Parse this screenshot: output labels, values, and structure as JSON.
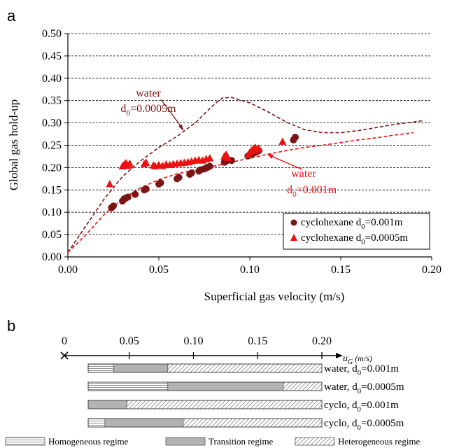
{
  "panel_labels": {
    "a": "a",
    "b": "b"
  },
  "chart_data": [
    {
      "type": "scatter",
      "xlabel": "Superficial gas velocity (m/s)",
      "ylabel": "Global gas hold-up",
      "xlim": [
        0,
        0.2
      ],
      "ylim": [
        0,
        0.5
      ],
      "xticks": [
        0,
        0.05,
        0.1,
        0.15,
        0.2
      ],
      "xtick_labels": [
        "0.00",
        "0.05",
        "0.10",
        "0.15",
        "0.20"
      ],
      "yticks": [
        0,
        0.05,
        0.1,
        0.15,
        0.2,
        0.25,
        0.3,
        0.35,
        0.4,
        0.45,
        0.5
      ],
      "ytick_labels": [
        "0.00",
        "0.05",
        "0.10",
        "0.15",
        "0.20",
        "0.25",
        "0.30",
        "0.35",
        "0.40",
        "0.45",
        "0.50"
      ],
      "grid": "horizontal-dashed",
      "legend_position": "bottom-right",
      "series": [
        {
          "name_prefix": "cyclohexane d",
          "name_sub": "0",
          "name_suffix": "=0.001m",
          "marker": "circle",
          "color": "#7a1515",
          "points": [
            [
              0.024,
              0.11
            ],
            [
              0.025,
              0.114
            ],
            [
              0.03,
              0.125
            ],
            [
              0.031,
              0.13
            ],
            [
              0.032,
              0.132
            ],
            [
              0.033,
              0.134
            ],
            [
              0.037,
              0.14
            ],
            [
              0.042,
              0.15
            ],
            [
              0.043,
              0.152
            ],
            [
              0.05,
              0.163
            ],
            [
              0.051,
              0.166
            ],
            [
              0.06,
              0.175
            ],
            [
              0.061,
              0.178
            ],
            [
              0.067,
              0.185
            ],
            [
              0.068,
              0.188
            ],
            [
              0.072,
              0.192
            ],
            [
              0.073,
              0.195
            ],
            [
              0.075,
              0.197
            ],
            [
              0.076,
              0.199
            ],
            [
              0.077,
              0.201
            ],
            [
              0.078,
              0.203
            ],
            [
              0.086,
              0.212
            ],
            [
              0.087,
              0.214
            ],
            [
              0.09,
              0.216
            ],
            [
              0.099,
              0.226
            ],
            [
              0.1,
              0.228
            ],
            [
              0.101,
              0.23
            ],
            [
              0.102,
              0.232
            ],
            [
              0.103,
              0.234
            ],
            [
              0.104,
              0.236
            ],
            [
              0.105,
              0.238
            ],
            [
              0.124,
              0.262
            ],
            [
              0.125,
              0.268
            ]
          ]
        },
        {
          "name_prefix": "cyclohexane d",
          "name_sub": "0",
          "name_suffix": "=0.0005m",
          "marker": "triangle",
          "color": "#ee1111",
          "points": [
            [
              0.023,
              0.163
            ],
            [
              0.03,
              0.203
            ],
            [
              0.031,
              0.207
            ],
            [
              0.032,
              0.21
            ],
            [
              0.033,
              0.204
            ],
            [
              0.034,
              0.209
            ],
            [
              0.042,
              0.208
            ],
            [
              0.043,
              0.211
            ],
            [
              0.047,
              0.205
            ],
            [
              0.048,
              0.203
            ],
            [
              0.05,
              0.206
            ],
            [
              0.052,
              0.204
            ],
            [
              0.054,
              0.207
            ],
            [
              0.056,
              0.206
            ],
            [
              0.058,
              0.208
            ],
            [
              0.06,
              0.209
            ],
            [
              0.062,
              0.21
            ],
            [
              0.064,
              0.211
            ],
            [
              0.066,
              0.212
            ],
            [
              0.068,
              0.214
            ],
            [
              0.07,
              0.216
            ],
            [
              0.072,
              0.217
            ],
            [
              0.074,
              0.216
            ],
            [
              0.076,
              0.219
            ],
            [
              0.078,
              0.221
            ],
            [
              0.086,
              0.225
            ],
            [
              0.087,
              0.229
            ],
            [
              0.088,
              0.222
            ],
            [
              0.099,
              0.228
            ],
            [
              0.1,
              0.234
            ],
            [
              0.101,
              0.238
            ],
            [
              0.102,
              0.242
            ],
            [
              0.103,
              0.245
            ],
            [
              0.104,
              0.24
            ],
            [
              0.105,
              0.243
            ],
            [
              0.118,
              0.258
            ]
          ]
        }
      ],
      "curves": [
        {
          "color": "#7a1515",
          "points": [
            [
              0,
              0.01
            ],
            [
              0.01,
              0.07
            ],
            [
              0.02,
              0.13
            ],
            [
              0.03,
              0.18
            ],
            [
              0.04,
              0.215
            ],
            [
              0.05,
              0.245
            ],
            [
              0.06,
              0.27
            ],
            [
              0.07,
              0.3
            ],
            [
              0.08,
              0.34
            ],
            [
              0.085,
              0.356
            ],
            [
              0.09,
              0.357
            ],
            [
              0.1,
              0.345
            ],
            [
              0.11,
              0.325
            ],
            [
              0.12,
              0.302
            ],
            [
              0.13,
              0.285
            ],
            [
              0.14,
              0.278
            ],
            [
              0.15,
              0.278
            ],
            [
              0.16,
              0.283
            ],
            [
              0.17,
              0.29
            ],
            [
              0.18,
              0.297
            ],
            [
              0.19,
              0.302
            ],
            [
              0.195,
              0.305
            ]
          ]
        },
        {
          "color": "#ee1111",
          "points": [
            [
              0,
              0.01
            ],
            [
              0.01,
              0.05
            ],
            [
              0.02,
              0.095
            ],
            [
              0.03,
              0.13
            ],
            [
              0.04,
              0.155
            ],
            [
              0.05,
              0.173
            ],
            [
              0.06,
              0.186
            ],
            [
              0.07,
              0.195
            ],
            [
              0.08,
              0.203
            ],
            [
              0.09,
              0.212
            ],
            [
              0.1,
              0.221
            ],
            [
              0.11,
              0.23
            ],
            [
              0.12,
              0.238
            ],
            [
              0.13,
              0.245
            ],
            [
              0.14,
              0.25
            ],
            [
              0.15,
              0.256
            ],
            [
              0.16,
              0.262
            ],
            [
              0.17,
              0.267
            ],
            [
              0.18,
              0.273
            ],
            [
              0.19,
              0.278
            ]
          ]
        }
      ],
      "annotations": [
        {
          "line1": "water",
          "line2_prefix": "d",
          "line2_sub": "0",
          "line2_suffix": "=0.0005m",
          "color": "#7a1515"
        },
        {
          "line1": "water",
          "line2_prefix": "d",
          "line2_sub": "0",
          "line2_suffix": "=0.001m",
          "color": "#ee1111"
        }
      ]
    },
    {
      "type": "bar",
      "orientation": "horizontal-stacked",
      "axis_origin_label": "0",
      "axis_label_main": "u",
      "axis_label_sub": "G",
      "axis_label_unit": " (m/s)",
      "xlim": [
        0,
        0.2
      ],
      "xticks": [
        0.05,
        0.1,
        0.15,
        0.2
      ],
      "xtick_labels": [
        "0.05",
        "0.10",
        "0.15",
        "0.20"
      ],
      "segment_names": [
        "Homogeneous regime",
        "Transition regime",
        "Heterogeneous regime"
      ],
      "rows": [
        {
          "prefix": "water, d",
          "sub": "0",
          "suffix": "=0.001m",
          "start": 0.018,
          "boundaries": [
            0.038,
            0.08
          ],
          "end": 0.2
        },
        {
          "prefix": "water, d",
          "sub": "0",
          "suffix": "=0.0005m",
          "start": 0.018,
          "boundaries": [
            0.08,
            0.17
          ],
          "end": 0.2
        },
        {
          "prefix": "cyclo, d",
          "sub": "0",
          "suffix": "=0.001m",
          "start": 0.018,
          "boundaries": [
            0.018,
            0.048
          ],
          "end": 0.2
        },
        {
          "prefix": "cyclo, d",
          "sub": "0",
          "suffix": "=0.0005m",
          "start": 0.018,
          "boundaries": [
            0.031,
            0.092
          ],
          "end": 0.2
        }
      ]
    }
  ]
}
